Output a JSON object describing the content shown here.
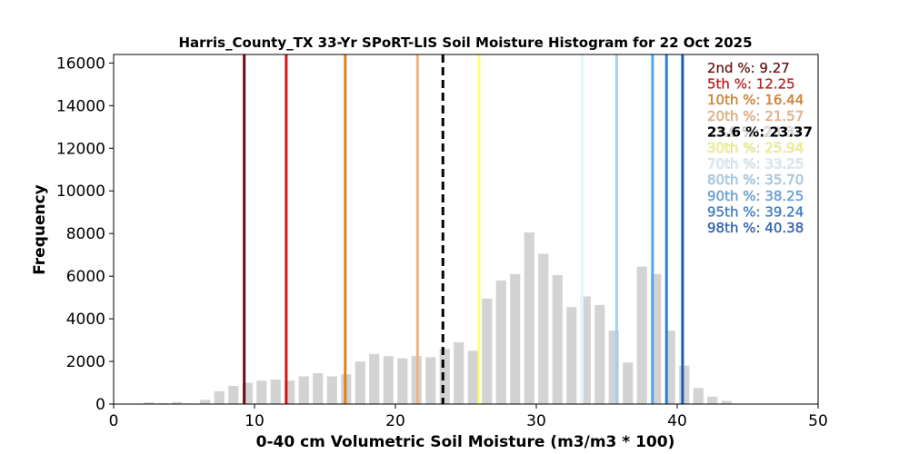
{
  "chart_data": {
    "type": "bar",
    "title": "Harris_County_TX 33-Yr SPoRT-LIS Soil Moisture Histogram for 22 Oct 2025",
    "xlabel": "0-40 cm Volumetric Soil Moisture (m3/m3 * 100)",
    "ylabel": "Frequency",
    "xlim": [
      0,
      50
    ],
    "ylim": [
      0,
      16400
    ],
    "xticks": [
      0,
      10,
      20,
      30,
      40,
      50
    ],
    "yticks": [
      0,
      2000,
      4000,
      6000,
      8000,
      10000,
      12000,
      14000,
      16000
    ],
    "bar_color": "#d3d3d3",
    "bins": [
      {
        "x": 2.5,
        "value": 80
      },
      {
        "x": 3.5,
        "value": 40
      },
      {
        "x": 4.5,
        "value": 90
      },
      {
        "x": 5.5,
        "value": 30
      },
      {
        "x": 6.5,
        "value": 200
      },
      {
        "x": 7.5,
        "value": 600
      },
      {
        "x": 8.5,
        "value": 850
      },
      {
        "x": 9.5,
        "value": 1000
      },
      {
        "x": 10.5,
        "value": 1100
      },
      {
        "x": 11.5,
        "value": 1150
      },
      {
        "x": 12.5,
        "value": 1100
      },
      {
        "x": 13.5,
        "value": 1300
      },
      {
        "x": 14.5,
        "value": 1450
      },
      {
        "x": 15.5,
        "value": 1300
      },
      {
        "x": 16.5,
        "value": 1400
      },
      {
        "x": 17.5,
        "value": 2000
      },
      {
        "x": 18.5,
        "value": 2350
      },
      {
        "x": 19.5,
        "value": 2250
      },
      {
        "x": 20.5,
        "value": 2150
      },
      {
        "x": 21.5,
        "value": 2250
      },
      {
        "x": 22.5,
        "value": 2200
      },
      {
        "x": 23.5,
        "value": 2600
      },
      {
        "x": 24.5,
        "value": 2900
      },
      {
        "x": 25.5,
        "value": 2500
      },
      {
        "x": 26.5,
        "value": 4950
      },
      {
        "x": 27.5,
        "value": 5800
      },
      {
        "x": 28.5,
        "value": 6100
      },
      {
        "x": 29.5,
        "value": 8050
      },
      {
        "x": 30.5,
        "value": 7050
      },
      {
        "x": 31.5,
        "value": 6050
      },
      {
        "x": 32.5,
        "value": 4550
      },
      {
        "x": 33.5,
        "value": 5050
      },
      {
        "x": 34.5,
        "value": 4650
      },
      {
        "x": 35.5,
        "value": 3450
      },
      {
        "x": 36.5,
        "value": 1950
      },
      {
        "x": 37.5,
        "value": 6450
      },
      {
        "x": 38.5,
        "value": 6100
      },
      {
        "x": 39.5,
        "value": 3450
      },
      {
        "x": 40.5,
        "value": 1800
      },
      {
        "x": 41.5,
        "value": 750
      },
      {
        "x": 42.5,
        "value": 350
      },
      {
        "x": 43.5,
        "value": 150
      }
    ],
    "percentile_lines": [
      {
        "label": "2nd %: 9.27",
        "value": 9.27,
        "color": "#6b0d0d",
        "dashed": false
      },
      {
        "label": "5th %: 12.25",
        "value": 12.25,
        "color": "#d11414",
        "dashed": false
      },
      {
        "label": "10th %: 16.44",
        "value": 16.44,
        "color": "#e67e17",
        "dashed": false
      },
      {
        "label": "20th %: 21.57",
        "value": 21.57,
        "color": "#f5b27a",
        "dashed": false
      },
      {
        "label": "23.6 %: 23.37",
        "value": 23.37,
        "color": "#000000",
        "dashed": true
      },
      {
        "label": "30th %: 25.94",
        "value": 25.94,
        "color": "#ffff7a",
        "dashed": false
      },
      {
        "label": "70th %: 33.25",
        "value": 33.25,
        "color": "#dff6ff",
        "dashed": false
      },
      {
        "label": "80th %: 35.70",
        "value": 35.7,
        "color": "#a0d0f5",
        "dashed": false
      },
      {
        "label": "90th %: 38.25",
        "value": 38.25,
        "color": "#5aa5e6",
        "dashed": false
      },
      {
        "label": "95th %: 39.24",
        "value": 39.24,
        "color": "#2d7fd6",
        "dashed": false
      },
      {
        "label": "98th %: 40.38",
        "value": 40.38,
        "color": "#1c5cb8",
        "dashed": false
      }
    ],
    "legend_placement": "top-right",
    "grid": false
  }
}
